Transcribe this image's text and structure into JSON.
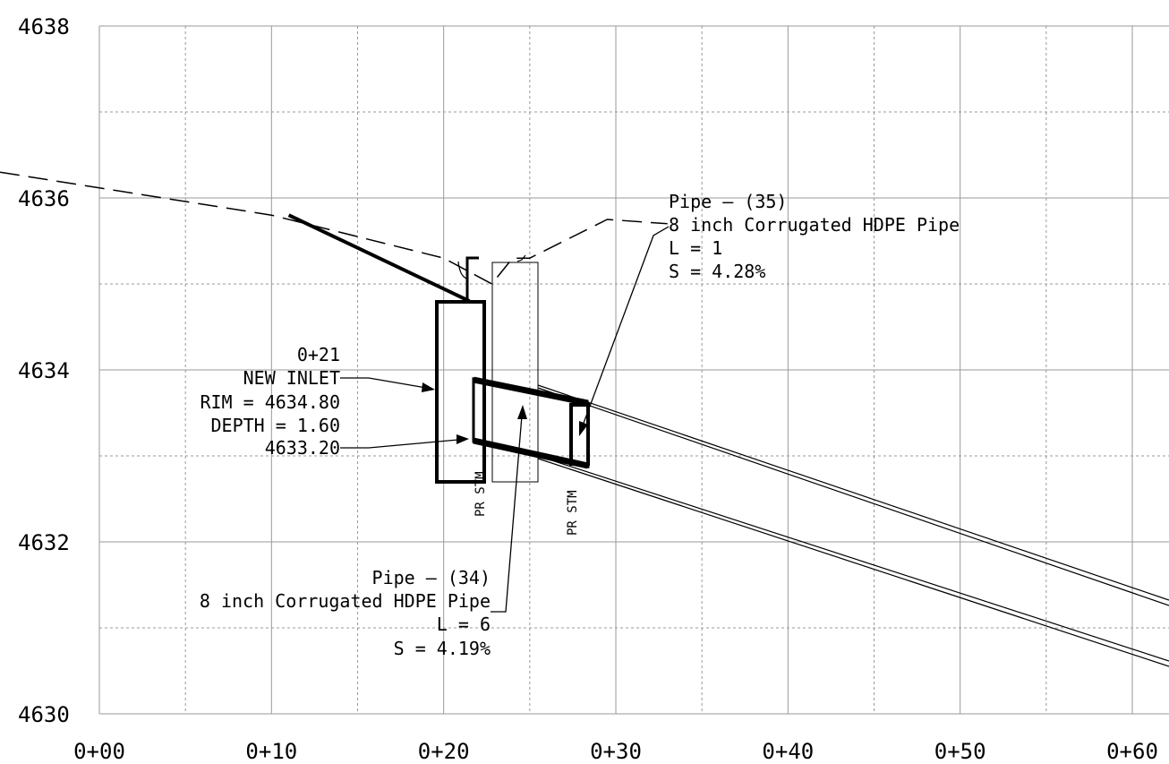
{
  "chart_data": {
    "type": "profile",
    "ylim": [
      4630,
      4638
    ],
    "xlim": [
      0,
      62
    ],
    "y_ticks": [
      "4630",
      "4632",
      "4634",
      "4636",
      "4638"
    ],
    "x_ticks": [
      "0+00",
      "0+10",
      "0+20",
      "0+30",
      "0+40",
      "0+50",
      "0+60"
    ],
    "grid": "on",
    "existing_ground": [
      [
        -5,
        4636.3
      ],
      [
        10,
        4635.8
      ],
      [
        20,
        4635.3
      ],
      [
        22.8,
        4635.0
      ],
      [
        24,
        4635.3
      ],
      [
        25,
        4635.3
      ],
      [
        27,
        4635.5
      ],
      [
        29.5,
        4635.75
      ],
      [
        33,
        4635.7
      ]
    ],
    "proposed_grade": [
      [
        11,
        4635.8
      ],
      [
        21.5,
        4634.8
      ]
    ],
    "inlet": {
      "station": 21,
      "rim": 4634.8,
      "invert": 4633.2,
      "depth": 1.6
    },
    "pipe_top": [
      [
        22,
        4633.9
      ],
      [
        28.5,
        4633.6
      ],
      [
        65,
        4631.0
      ]
    ],
    "pipe_bottom": [
      [
        22,
        4633.15
      ],
      [
        28.5,
        4632.9
      ],
      [
        65,
        4630.3
      ]
    ]
  },
  "labels": {
    "inlet_station": "0+21",
    "inlet_name": "NEW INLET",
    "inlet_rim": "RIM = 4634.80",
    "inlet_depth": "DEPTH = 1.60",
    "inlet_invert": "4633.20",
    "pipe34_title": "Pipe – (34)",
    "pipe34_desc": "8 inch Corrugated HDPE Pipe",
    "pipe34_length": "L = 6",
    "pipe34_slope": "S = 4.19%",
    "pipe35_title": "Pipe – (35)",
    "pipe35_desc": "8 inch Corrugated HDPE Pipe",
    "pipe35_length": "L = 1",
    "pipe35_slope": "S = 4.28%",
    "pr_stm_1": "PR STM",
    "pr_stm_2": "PR STM"
  }
}
